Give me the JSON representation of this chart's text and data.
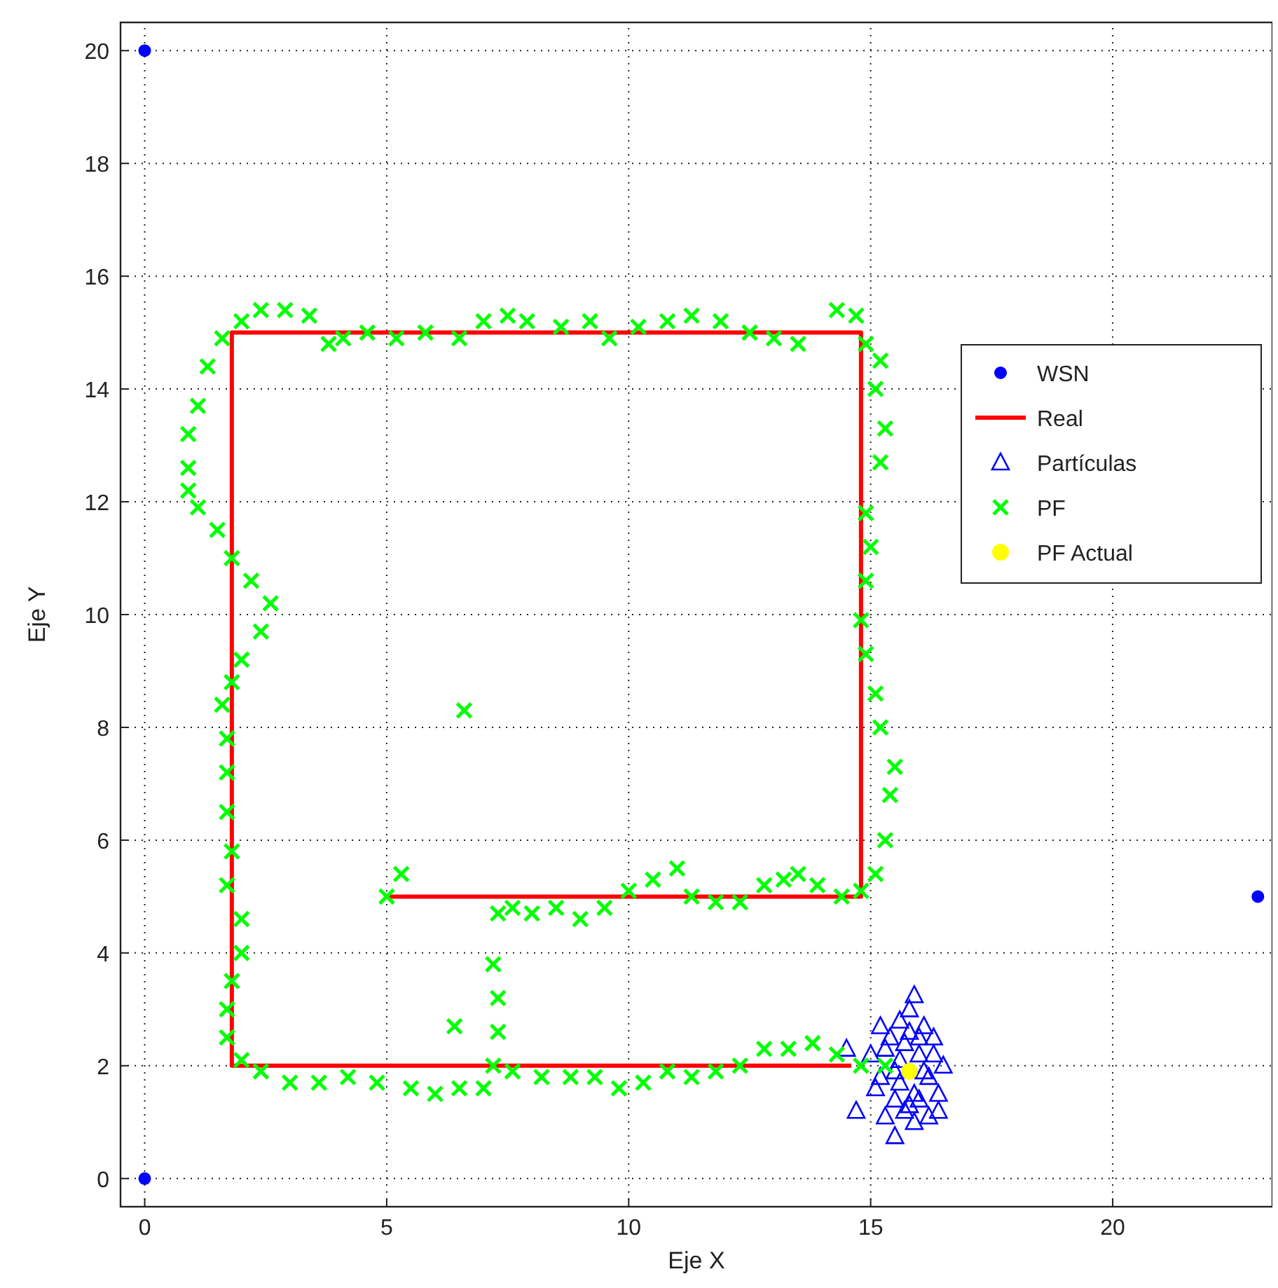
{
  "chart_data": {
    "type": "scatter",
    "xlabel": "Eje X",
    "ylabel": "Eje Y",
    "xlim": [
      -0.5,
      23.3
    ],
    "ylim": [
      -0.5,
      20.5
    ],
    "xticks": [
      0,
      5,
      10,
      15,
      20
    ],
    "yticks": [
      0,
      2,
      4,
      6,
      8,
      10,
      12,
      14,
      16,
      18,
      20
    ],
    "grid": true,
    "legend": "top right",
    "series": [
      {
        "name": "WSN",
        "marker": "circle",
        "color": "#0000ff",
        "x": [
          0,
          0,
          23
        ],
        "values": [
          0,
          20,
          5
        ]
      },
      {
        "name": "Real",
        "type": "line",
        "marker": "none",
        "line_style": "solid",
        "color": "#ff0000",
        "x": [
          5,
          14.8,
          14.8,
          1.8,
          1.8,
          14.6
        ],
        "values": [
          5,
          5,
          15,
          15,
          2,
          2
        ]
      },
      {
        "name": "Partículas",
        "marker": "triangle",
        "color": "#0000ff",
        "x": [
          14.5,
          14.7,
          15.2,
          15.4,
          15.6,
          15.8,
          15.9,
          16.1,
          16.3,
          16.5,
          16.4,
          16.2,
          15.9,
          15.5,
          15.3,
          15.5,
          15.0,
          15.1,
          15.7,
          16.0,
          16.2,
          15.6,
          15.8,
          16.0,
          15.3,
          15.7,
          16.1,
          16.4,
          15.9,
          15.6,
          15.2,
          16.3,
          15.8,
          15.5,
          16.0
        ],
        "values": [
          2.3,
          1.2,
          1.8,
          2.5,
          2.8,
          3.0,
          3.25,
          2.7,
          2.5,
          2.0,
          1.5,
          1.1,
          1.0,
          1.4,
          1.1,
          0.75,
          2.2,
          1.6,
          2.4,
          2.2,
          1.8,
          1.7,
          2.6,
          1.4,
          2.3,
          1.2,
          1.9,
          1.2,
          1.5,
          2.1,
          2.7,
          2.2,
          1.3,
          1.9,
          2.5
        ]
      },
      {
        "name": "PF",
        "marker": "cross",
        "color": "#00ff00",
        "x": [
          5,
          5.3,
          7.3,
          7.6,
          8,
          8.5,
          9,
          9.5,
          10,
          10.5,
          11,
          11.3,
          11.8,
          12.3,
          12.8,
          13.2,
          13.5,
          13.9,
          14.4,
          14.8,
          15.1,
          15.3,
          15.4,
          15.5,
          15.2,
          15.1,
          14.9,
          14.8,
          14.9,
          15,
          14.9,
          15.2,
          15.3,
          15.1,
          15.2,
          14.9,
          14.7,
          14.3,
          13.5,
          13,
          12.5,
          11.9,
          11.3,
          10.8,
          10.2,
          9.6,
          9.2,
          8.6,
          7.9,
          7.5,
          7,
          6.5,
          5.8,
          5.2,
          4.6,
          4.1,
          3.8,
          3.4,
          2.9,
          2.4,
          2,
          1.6,
          1.3,
          1.1,
          0.9,
          0.9,
          0.9,
          1.1,
          1.5,
          1.8,
          2.2,
          2.6,
          2.4,
          2,
          1.8,
          1.6,
          1.7,
          1.7,
          1.7,
          1.8,
          1.7,
          2,
          2,
          1.8,
          1.7,
          1.7,
          2,
          2.4,
          3,
          3.6,
          4.2,
          4.8,
          5.5,
          6,
          6.5,
          7,
          7.2,
          7.3,
          7.3,
          7.2,
          6.4,
          7.6,
          8.2,
          8.8,
          9.3,
          9.8,
          10.3,
          10.8,
          11.3,
          11.8,
          12.3,
          12.8,
          13.3,
          13.8,
          14.3,
          14.8,
          15.3,
          6.6
        ],
        "values": [
          5,
          5.4,
          4.7,
          4.8,
          4.7,
          4.8,
          4.6,
          4.8,
          5.1,
          5.3,
          5.5,
          5,
          4.9,
          4.9,
          5.2,
          5.3,
          5.4,
          5.2,
          5,
          5.1,
          5.4,
          6,
          6.8,
          7.3,
          8,
          8.6,
          9.3,
          9.9,
          10.6,
          11.2,
          11.8,
          12.7,
          13.3,
          14,
          14.5,
          14.8,
          15.3,
          15.4,
          14.8,
          14.9,
          15,
          15.2,
          15.3,
          15.2,
          15.1,
          14.9,
          15.2,
          15.1,
          15.2,
          15.3,
          15.2,
          14.9,
          15,
          14.9,
          15,
          14.9,
          14.8,
          15.3,
          15.4,
          15.4,
          15.2,
          14.9,
          14.4,
          13.7,
          13.2,
          12.6,
          12.2,
          11.9,
          11.5,
          11,
          10.6,
          10.2,
          9.7,
          9.2,
          8.8,
          8.4,
          7.8,
          7.2,
          6.5,
          5.8,
          5.2,
          4.6,
          4,
          3.5,
          3,
          2.5,
          2.1,
          1.9,
          1.7,
          1.7,
          1.8,
          1.7,
          1.6,
          1.5,
          1.6,
          1.6,
          2,
          2.6,
          3.2,
          3.8,
          2.7,
          1.9,
          1.8,
          1.8,
          1.8,
          1.6,
          1.7,
          1.9,
          1.8,
          1.9,
          2,
          2.3,
          2.3,
          2.4,
          2.2,
          2,
          2,
          8.3
        ]
      },
      {
        "name": "PF Actual",
        "marker": "circle",
        "color": "#ffff00",
        "x": [
          15.8
        ],
        "values": [
          1.9
        ]
      }
    ]
  }
}
